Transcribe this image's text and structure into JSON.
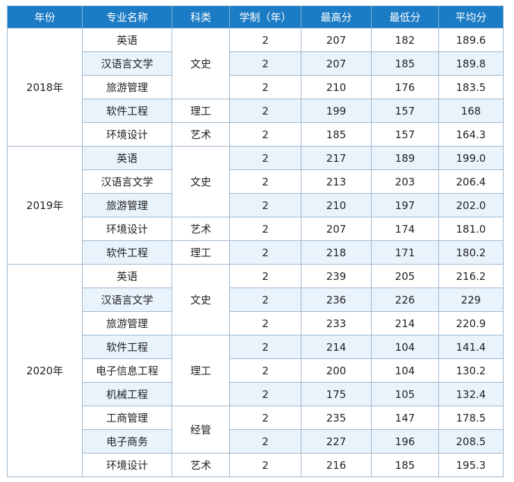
{
  "headers": [
    "年份",
    "专业名称",
    "科类",
    "学制（年）",
    "最高分",
    "最低分",
    "平均分"
  ],
  "groups": [
    {
      "year": "2018年",
      "rows": [
        {
          "major": "英语",
          "category": "文史",
          "span": 3,
          "years": "2",
          "max": "207",
          "min": "182",
          "avg": "189.6"
        },
        {
          "major": "汉语言文学",
          "years": "2",
          "max": "207",
          "min": "185",
          "avg": "189.8"
        },
        {
          "major": "旅游管理",
          "years": "2",
          "max": "210",
          "min": "176",
          "avg": "183.5"
        },
        {
          "major": "软件工程",
          "category": "理工",
          "span": 1,
          "years": "2",
          "max": "199",
          "min": "157",
          "avg": "168"
        },
        {
          "major": "环境设计",
          "category": "艺术",
          "span": 1,
          "years": "2",
          "max": "185",
          "min": "157",
          "avg": "164.3"
        }
      ]
    },
    {
      "year": "2019年",
      "rows": [
        {
          "major": "英语",
          "category": "文史",
          "span": 3,
          "years": "2",
          "max": "217",
          "min": "189",
          "avg": "199.0"
        },
        {
          "major": "汉语言文学",
          "years": "2",
          "max": "213",
          "min": "203",
          "avg": "206.4"
        },
        {
          "major": "旅游管理",
          "years": "2",
          "max": "210",
          "min": "197",
          "avg": "202.0"
        },
        {
          "major": "环境设计",
          "category": "艺术",
          "span": 1,
          "years": "2",
          "max": "207",
          "min": "174",
          "avg": "181.0"
        },
        {
          "major": "软件工程",
          "category": "理工",
          "span": 1,
          "years": "2",
          "max": "218",
          "min": "171",
          "avg": "180.2"
        }
      ]
    },
    {
      "year": "2020年",
      "rows": [
        {
          "major": "英语",
          "category": "文史",
          "span": 3,
          "years": "2",
          "max": "239",
          "min": "205",
          "avg": "216.2"
        },
        {
          "major": "汉语言文学",
          "years": "2",
          "max": "236",
          "min": "226",
          "avg": "229"
        },
        {
          "major": "旅游管理",
          "years": "2",
          "max": "233",
          "min": "214",
          "avg": "220.9"
        },
        {
          "major": "软件工程",
          "category": "理工",
          "span": 3,
          "years": "2",
          "max": "214",
          "min": "104",
          "avg": "141.4"
        },
        {
          "major": "电子信息工程",
          "years": "2",
          "max": "200",
          "min": "104",
          "avg": "130.2"
        },
        {
          "major": "机械工程",
          "years": "2",
          "max": "175",
          "min": "105",
          "avg": "132.4"
        },
        {
          "major": "工商管理",
          "category": "经管",
          "span": 2,
          "years": "2",
          "max": "235",
          "min": "147",
          "avg": "178.5"
        },
        {
          "major": "电子商务",
          "years": "2",
          "max": "227",
          "min": "196",
          "avg": "208.5"
        },
        {
          "major": "环境设计",
          "category": "艺术",
          "span": 1,
          "years": "2",
          "max": "216",
          "min": "185",
          "avg": "195.3"
        }
      ]
    }
  ]
}
